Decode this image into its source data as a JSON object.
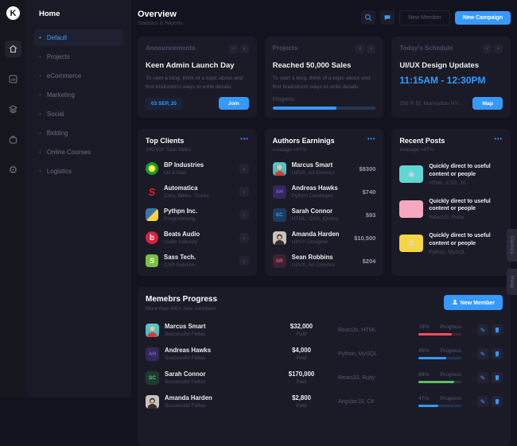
{
  "accent": "#3699ff",
  "rail": {
    "logo_letter": "K"
  },
  "menu": {
    "header": "Home",
    "items": [
      {
        "label": "Default",
        "active": true
      },
      {
        "label": "Projects",
        "active": false
      },
      {
        "label": "eCommerce",
        "active": false
      },
      {
        "label": "Marketing",
        "active": false
      },
      {
        "label": "Social",
        "active": false
      },
      {
        "label": "Bidding",
        "active": false
      },
      {
        "label": "Online Courses",
        "active": false
      },
      {
        "label": "Logistics",
        "active": false
      }
    ]
  },
  "header": {
    "title": "Overview",
    "subtitle": "Statistics & Reports",
    "icons": {
      "search": "search-icon",
      "chat": "chat-icon"
    },
    "new_member_label": "New Member",
    "new_campaign_label": "New Campaign"
  },
  "announcements": {
    "title": "Announcements",
    "heading": "Keen Admin Launch Day",
    "body": "To start a blog, think of a topic about and first brainstorm ways to write details",
    "date": "03 SEP, 20",
    "join_label": "Join"
  },
  "projects": {
    "title": "Projects",
    "heading": "Reached 50,000 Sales",
    "body": "To start a blog, think of a topic about and first brainstorm ways to write details",
    "progress_label": "Progress",
    "progress_pct": 62
  },
  "schedule": {
    "title": "Today's Schedule",
    "heading": "UI/UX Design Updates",
    "time": "11:15AM - 12:30PM",
    "address": "256 R St. Manhattan NY..",
    "map_label": "Map"
  },
  "top_clients": {
    "title": "Top Clients",
    "subtitle": "240,000 Total Sales",
    "clients": [
      {
        "name": "BP Industries",
        "industry": "Oil & Gas",
        "logo": "bp-logo"
      },
      {
        "name": "Automatica",
        "industry": "Cars, Bikes, Trucks",
        "logo": "suzuki-logo",
        "glyph": "S"
      },
      {
        "name": "Pythpn Inc.",
        "industry": "Programming",
        "logo": "python-logo"
      },
      {
        "name": "Beats Audio",
        "industry": "Audio Industry",
        "logo": "beats-logo",
        "glyph": "b"
      },
      {
        "name": "Sass Tech.",
        "industry": "CSS Solution",
        "logo": "sass-logo",
        "glyph": "S"
      }
    ]
  },
  "authors": {
    "title": "Authors Earninigs",
    "subtitle": "Avarage +47%",
    "list": [
      {
        "name": "Marcus Smart",
        "role": "UI/UX, Art Director",
        "amount": "$8300",
        "avatar": "photo-male-teal"
      },
      {
        "name": "Andreas Hawks",
        "role": "Python Developer",
        "amount": "$740",
        "initials": "AH"
      },
      {
        "name": "Sarah Connor",
        "role": "HTML, CSS. jQuery",
        "amount": "$93",
        "initials": "SC"
      },
      {
        "name": "Amanda Harden",
        "role": "UI/UX Designer",
        "amount": "$10,500",
        "avatar": "photo-female-gray"
      },
      {
        "name": "Sean Robbins",
        "role": "UI/UX, Art Director",
        "amount": "$204",
        "initials": "SR"
      }
    ]
  },
  "recent_posts": {
    "title": "Recent Posts",
    "subtitle": "Avarage +47%",
    "posts": [
      {
        "title": "Quickly direct to useful content or people",
        "tags": "HTML, CSS, JS",
        "thumb_color": "#5fd6d2",
        "thumb_glyph": "◉"
      },
      {
        "title": "Quickly direct to useful content or people",
        "tags": "ReactJS, Ruby",
        "thumb_color": "#f8a7c0",
        "thumb_glyph": "♡"
      },
      {
        "title": "Quickly direct to useful content or people",
        "tags": "Python, MySQL",
        "thumb_color": "#f5d445",
        "thumb_glyph": "✿"
      }
    ]
  },
  "members": {
    "title": "Memebrs Progress",
    "subtitle": "More than 400+ new members",
    "new_member_label": "New Member",
    "rows": [
      {
        "name": "Marcus Smart",
        "status": "Successful Fellas",
        "amount": "$32,000",
        "paid": "Paid",
        "stack": "ReactJs, HTML",
        "pct": "78%",
        "pct_val": 78,
        "progress_label": "Progress",
        "color": "#f64e60",
        "initials": ""
      },
      {
        "name": "Andreas Hawks",
        "status": "Successful Fellas",
        "amount": "$4,000",
        "paid": "Paid",
        "stack": "Python, MySQL",
        "pct": "65%",
        "pct_val": 65,
        "progress_label": "Progress",
        "color": "#3699ff",
        "initials": "AH"
      },
      {
        "name": "Sarah Connor",
        "status": "Successful Fellas",
        "amount": "$170,000",
        "paid": "Paid",
        "stack": "ReactJS, Ruby",
        "pct": "84%",
        "pct_val": 84,
        "progress_label": "Progress",
        "color": "#5dbf60",
        "initials": "SC"
      },
      {
        "name": "Amanda Harden",
        "status": "Successful Fellas",
        "amount": "$2,800",
        "paid": "Paid",
        "stack": "AngularJS, C#",
        "pct": "47%",
        "pct_val": 47,
        "progress_label": "Progress",
        "color": "#3699ff",
        "initials": ""
      }
    ]
  },
  "edge_tabs": {
    "demos": "Demos",
    "help": "Help"
  }
}
